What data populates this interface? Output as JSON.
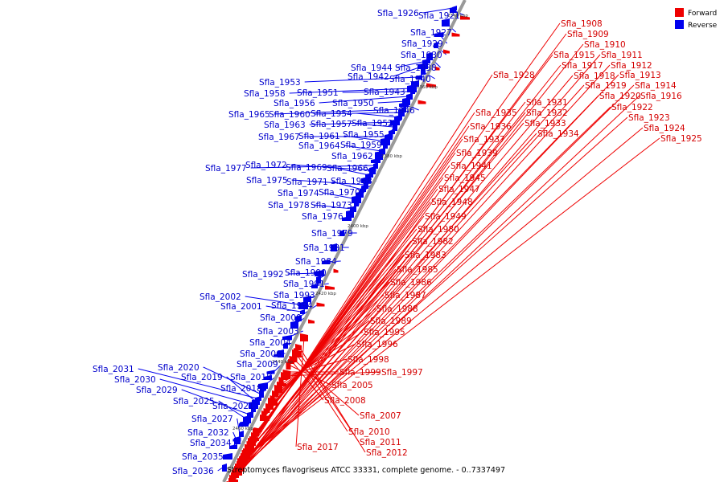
{
  "caption": "Streptomyces flavogriseus ATCC 33331, complete genome. - 0..7337497",
  "legend": [
    {
      "label": "Forward",
      "color": "#ee0000"
    },
    {
      "label": "Reverse",
      "color": "#0000ee"
    }
  ],
  "strand_colors": {
    "forward": "#ee0000",
    "reverse": "#0000ee",
    "axis": "#999999"
  },
  "ticks": [
    "2340 kbp",
    "2360 kbp",
    "2380 kbp",
    "2400 kbp",
    "2420 kbp",
    "2440 kbp",
    "2460 kbp"
  ],
  "forward_labels": [
    "Sfla_1908",
    "Sfla_1909",
    "Sfla_1910",
    "Sfla_1911",
    "Sfla_1912",
    "Sfla_1913",
    "Sfla_1914",
    "Sfla_1915",
    "Sfla_1916",
    "Sfla_1917",
    "Sfla_1918",
    "Sfla_1919",
    "Sfla_1920",
    "Sfla_1922",
    "Sfla_1923",
    "Sfla_1924",
    "Sfla_1925",
    "Sfla_1928",
    "Sfla_1931",
    "Sfla_1932",
    "Sfla_1933",
    "Sfla_1934",
    "Sfla_1935",
    "Sfla_1936",
    "Sfla_1937",
    "Sfla_1939",
    "Sfla_1941",
    "Sfla_1945",
    "Sfla_1947",
    "Sfla_1948",
    "Sfla_1949",
    "Sfla_1980",
    "Sfla_1982",
    "Sfla_1983",
    "Sfla_1985",
    "Sfla_1986",
    "Sfla_1987",
    "Sfla_1988",
    "Sfla_1989",
    "Sfla_1995",
    "Sfla_1996",
    "Sfla_1998",
    "Sfla_1999",
    "Sfla_1997",
    "Sfla_2005",
    "Sfla_2008",
    "Sfla_2007",
    "Sfla_2010",
    "Sfla_2011",
    "Sfla_2012",
    "Sfla_2017"
  ],
  "reverse_labels": [
    "Sfla_1926",
    "Sfla_1921",
    "Sfla_1927",
    "Sfla_1929",
    "Sfla_1930",
    "Sfla_1938",
    "Sfla_1944",
    "Sfla_1942",
    "Sfla_1940",
    "Sfla_1953",
    "Sfla_1943",
    "Sfla_1958",
    "Sfla_1951",
    "Sfla_1956",
    "Sfla_1950",
    "Sfla_1946",
    "Sfla_1965",
    "Sfla_1960",
    "Sfla_1954",
    "Sfla_1963",
    "Sfla_1957",
    "Sfla_1952",
    "Sfla_1967",
    "Sfla_1961",
    "Sfla_1955",
    "Sfla_1964",
    "Sfla_1959",
    "Sfla_1962",
    "Sfla_1977",
    "Sfla_1972",
    "Sfla_1969",
    "Sfla_1966",
    "Sfla_1975",
    "Sfla_1971",
    "Sfla_1968",
    "Sfla_1974",
    "Sfla_1970",
    "Sfla_1978",
    "Sfla_1973",
    "Sfla_1976",
    "Sfla_1979",
    "Sfla_1981",
    "Sfla_1984",
    "Sfla_1992",
    "Sfla_1990",
    "Sfla_1991",
    "Sfla_1993",
    "Sfla_2002",
    "Sfla_2001",
    "Sfla_1994",
    "Sfla_2000",
    "Sfla_2003",
    "Sfla_2004",
    "Sfla_2006",
    "Sfla_2009",
    "Sfla_2015",
    "Sfla_2020",
    "Sfla_2031",
    "Sfla_2019",
    "Sfla_2030",
    "Sfla_2018",
    "Sfla_2029",
    "Sfla_2025",
    "Sfla_2021",
    "Sfla_2027",
    "Sfla_2032",
    "Sfla_2034",
    "Sfla_2035",
    "Sfla_2036"
  ]
}
